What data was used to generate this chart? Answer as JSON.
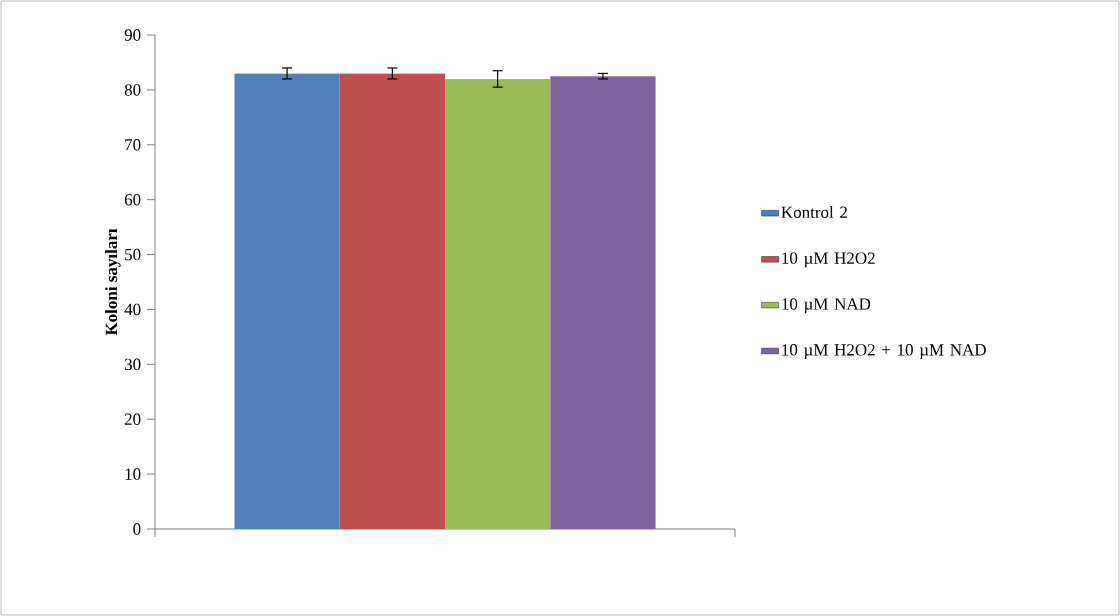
{
  "chart_data": {
    "type": "bar",
    "ylabel": "Koloni sayıları",
    "categories": [
      null
    ],
    "series": [
      {
        "name": "Kontrol 2",
        "color": "#4f81bd",
        "values": [
          83
        ],
        "errors": [
          1
        ]
      },
      {
        "name": "10 µM H2O2",
        "color": "#c0504d",
        "values": [
          83
        ],
        "errors": [
          1
        ]
      },
      {
        "name": "10 µM NAD",
        "color": "#9bbb59",
        "values": [
          82
        ],
        "errors": [
          1.5
        ]
      },
      {
        "name": "10 µM H2O2 + 10 µM NAD",
        "color": "#8064a2",
        "values": [
          82.5
        ],
        "errors": [
          0.5
        ]
      }
    ],
    "ylim": [
      0,
      90
    ],
    "yticks": [
      0,
      10,
      20,
      30,
      40,
      50,
      60,
      70,
      80,
      90
    ],
    "legend": "right"
  }
}
